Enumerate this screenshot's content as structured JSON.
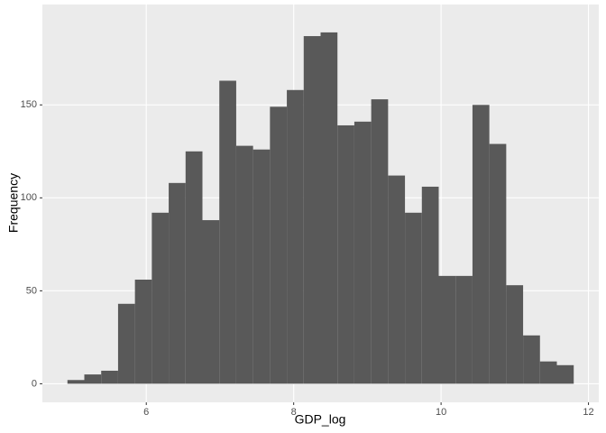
{
  "chart_data": {
    "type": "histogram",
    "x_label": "GDP_log",
    "y_label": "Frequency",
    "bins": [
      4.93,
      5.159,
      5.388,
      5.617,
      5.846,
      6.075,
      6.304,
      6.533,
      6.762,
      6.991,
      7.22,
      7.449,
      7.678,
      7.907,
      8.136,
      8.365,
      8.594,
      8.823,
      9.052,
      9.281,
      9.51,
      9.739,
      9.968,
      10.197,
      10.426,
      10.655,
      10.884,
      11.113,
      11.342,
      11.571,
      11.8
    ],
    "values": [
      2,
      5,
      7,
      43,
      56,
      92,
      108,
      125,
      88,
      163,
      128,
      126,
      149,
      158,
      187,
      189,
      139,
      141,
      153,
      112,
      92,
      106,
      58,
      58,
      150,
      129,
      53,
      26,
      12,
      10
    ],
    "color": "#595959",
    "xlim": [
      4.59,
      12.14
    ],
    "xticks": [
      6,
      8,
      10,
      12
    ],
    "ylim": [
      -10,
      204
    ],
    "yticks": [
      0,
      50,
      100,
      150
    ],
    "grid": true
  }
}
